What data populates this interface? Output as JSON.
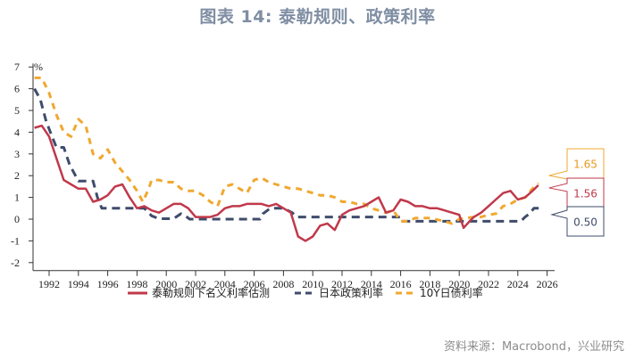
{
  "title": "图表 14: 泰勒规则、政策利率",
  "source": "资料来源：Macrobond，兴业研究",
  "chart_data": {
    "type": "line",
    "title": "图表 14: 泰勒规则、政策利率",
    "ylabel": "%",
    "xlabel": "",
    "ylim": [
      -2,
      7
    ],
    "xlim": [
      1990.8,
      2026.5
    ],
    "yticks": [
      -2,
      -1,
      0,
      1,
      2,
      3,
      4,
      5,
      6,
      7
    ],
    "xticks": [
      "1992",
      "1994",
      "1996",
      "1998",
      "2000",
      "2002",
      "2004",
      "2006",
      "2008",
      "2010",
      "2012",
      "2014",
      "2016",
      "2018",
      "2020",
      "2022",
      "2024",
      "2026"
    ],
    "grid": false,
    "legend_position": "bottom",
    "series": [
      {
        "name": "泰勒规则下名义利率估测",
        "color": "#c0394b",
        "style": "solid",
        "last_value": "1.56",
        "x": [
          1991.0,
          1991.5,
          1992.0,
          1992.5,
          1993.0,
          1993.5,
          1994.0,
          1994.5,
          1995.0,
          1995.5,
          1996.0,
          1996.5,
          1997.0,
          1997.5,
          1998.0,
          1998.5,
          1999.0,
          1999.5,
          2000.0,
          2000.5,
          2001.0,
          2001.5,
          2002.0,
          2002.5,
          2003.0,
          2003.5,
          2004.0,
          2004.5,
          2005.0,
          2005.5,
          2006.0,
          2006.5,
          2007.0,
          2007.5,
          2008.0,
          2008.5,
          2009.0,
          2009.5,
          2010.0,
          2010.5,
          2011.0,
          2011.5,
          2012.0,
          2012.5,
          2013.0,
          2013.5,
          2014.0,
          2014.5,
          2015.0,
          2015.5,
          2016.0,
          2016.5,
          2017.0,
          2017.5,
          2018.0,
          2018.5,
          2019.0,
          2019.5,
          2020.0,
          2020.3,
          2020.7,
          2021.0,
          2021.5,
          2022.0,
          2022.5,
          2023.0,
          2023.5,
          2024.0,
          2024.5,
          2025.0,
          2025.4
        ],
        "values": [
          4.2,
          4.3,
          3.8,
          2.8,
          1.8,
          1.6,
          1.4,
          1.4,
          0.8,
          0.9,
          1.1,
          1.5,
          1.6,
          1.0,
          0.5,
          0.6,
          0.4,
          0.3,
          0.5,
          0.7,
          0.7,
          0.5,
          0.1,
          0.1,
          0.1,
          0.2,
          0.5,
          0.6,
          0.6,
          0.7,
          0.7,
          0.7,
          0.6,
          0.7,
          0.5,
          0.3,
          -0.8,
          -1.0,
          -0.8,
          -0.3,
          -0.2,
          -0.5,
          0.2,
          0.4,
          0.5,
          0.6,
          0.8,
          1.0,
          0.3,
          0.4,
          0.9,
          0.8,
          0.6,
          0.6,
          0.5,
          0.5,
          0.4,
          0.3,
          0.2,
          -0.4,
          -0.1,
          0.1,
          0.3,
          0.6,
          0.9,
          1.2,
          1.3,
          0.9,
          1.0,
          1.3,
          1.56
        ]
      },
      {
        "name": "日本政策利率",
        "color": "#3f4c6b",
        "style": "dashed",
        "last_value": "0.50",
        "x": [
          1991.0,
          1991.4,
          1991.8,
          1992.2,
          1992.5,
          1993.0,
          1993.4,
          1994.0,
          1995.0,
          1995.3,
          1995.6,
          1996.0,
          1998.5,
          1999.0,
          1999.5,
          2000.5,
          2001.0,
          2001.3,
          2001.6,
          2006.4,
          2006.6,
          2007.1,
          2008.0,
          2008.6,
          2008.9,
          2016.0,
          2016.1,
          2024.2,
          2024.5,
          2024.8,
          2025.1,
          2025.6
        ],
        "values": [
          6.0,
          5.5,
          4.5,
          3.8,
          3.3,
          3.3,
          2.5,
          1.75,
          1.75,
          1.0,
          0.5,
          0.5,
          0.5,
          0.15,
          0.02,
          0.02,
          0.25,
          0.15,
          0.0,
          0.0,
          0.25,
          0.5,
          0.5,
          0.3,
          0.1,
          0.1,
          -0.1,
          -0.1,
          0.1,
          0.25,
          0.5,
          0.5
        ]
      },
      {
        "name": "10Y日债利率",
        "color": "#f0a830",
        "style": "dashed",
        "last_value": "1.65",
        "x": [
          1991.0,
          1991.5,
          1992.0,
          1992.5,
          1993.0,
          1993.5,
          1994.0,
          1994.5,
          1995.0,
          1995.5,
          1996.0,
          1996.5,
          1997.0,
          1997.5,
          1998.0,
          1998.4,
          1998.8,
          1999.0,
          1999.5,
          2000.0,
          2000.5,
          2001.0,
          2001.5,
          2002.0,
          2002.5,
          2003.0,
          2003.5,
          2004.0,
          2004.5,
          2005.0,
          2005.5,
          2006.0,
          2006.5,
          2007.0,
          2007.5,
          2008.0,
          2008.5,
          2009.0,
          2009.5,
          2010.0,
          2010.5,
          2011.0,
          2011.5,
          2012.0,
          2012.5,
          2013.0,
          2013.5,
          2014.0,
          2014.5,
          2015.0,
          2015.5,
          2016.0,
          2016.5,
          2017.0,
          2018.0,
          2019.0,
          2019.5,
          2020.0,
          2020.5,
          2021.0,
          2021.5,
          2022.0,
          2022.5,
          2023.0,
          2023.5,
          2024.0,
          2024.5,
          2025.0,
          2025.4
        ],
        "values": [
          6.5,
          6.5,
          5.8,
          4.8,
          4.0,
          3.8,
          4.6,
          4.3,
          3.0,
          2.8,
          3.2,
          2.6,
          2.2,
          1.8,
          1.3,
          0.8,
          1.4,
          1.8,
          1.8,
          1.7,
          1.7,
          1.4,
          1.3,
          1.3,
          1.1,
          0.8,
          0.6,
          1.5,
          1.6,
          1.4,
          1.2,
          1.8,
          1.9,
          1.7,
          1.6,
          1.5,
          1.4,
          1.4,
          1.3,
          1.2,
          1.1,
          1.1,
          1.0,
          0.8,
          0.8,
          0.7,
          0.7,
          0.5,
          0.4,
          0.3,
          0.4,
          -0.1,
          -0.1,
          0.05,
          0.05,
          -0.1,
          -0.2,
          0.0,
          0.05,
          0.1,
          0.1,
          0.2,
          0.25,
          0.6,
          0.7,
          0.9,
          1.0,
          1.4,
          1.65
        ]
      }
    ]
  }
}
